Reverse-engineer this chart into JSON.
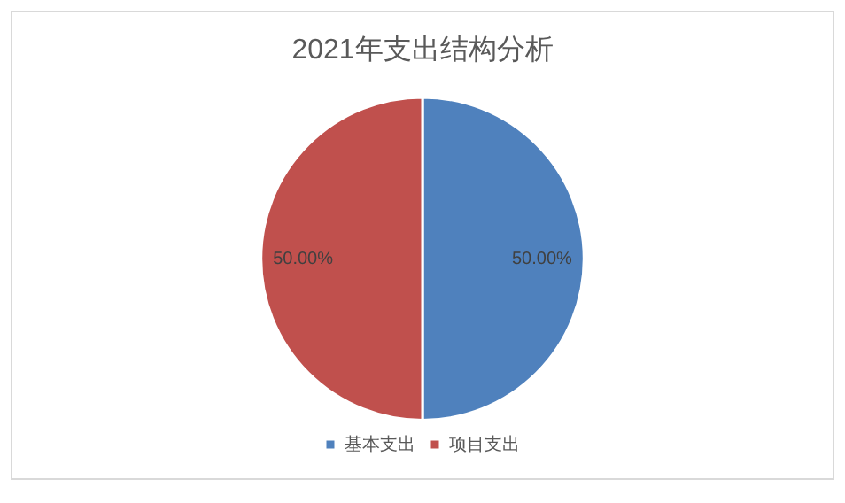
{
  "chart_data": {
    "type": "pie",
    "title": "2021年支出结构分析",
    "categories": [
      "基本支出",
      "项目支出"
    ],
    "values": [
      50,
      50
    ],
    "value_labels": [
      "50.00%",
      "50.00%"
    ],
    "colors": [
      "#4f81bd",
      "#c0504d"
    ],
    "legend": "bottom"
  }
}
